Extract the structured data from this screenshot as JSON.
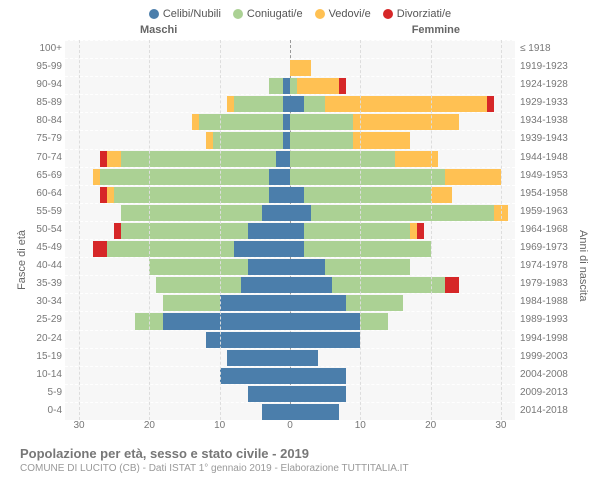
{
  "chart": {
    "type": "population-pyramid",
    "legend": [
      {
        "label": "Celibi/Nubili",
        "color": "#4b7eab"
      },
      {
        "label": "Coniugati/e",
        "color": "#abd194"
      },
      {
        "label": "Vedovi/e",
        "color": "#ffc153"
      },
      {
        "label": "Divorziati/e",
        "color": "#d62728"
      }
    ],
    "male_label": "Maschi",
    "female_label": "Femmine",
    "y_left_title": "Fasce di età",
    "y_right_title": "Anni di nascita",
    "x_max": 32,
    "x_ticks": [
      30,
      20,
      10,
      0,
      10,
      20,
      30
    ],
    "title": "Popolazione per età, sesso e stato civile - 2019",
    "subtitle": "COMUNE DI LUCITO (CB) - Dati ISTAT 1° gennaio 2019 - Elaborazione TUTTITALIA.IT",
    "label_fontsize": 10,
    "background_color": "#f7f7f7",
    "grid_color": "#ffffff",
    "rows": [
      {
        "age": "100+",
        "birth": "≤ 1918",
        "m": [
          0,
          0,
          0,
          0
        ],
        "f": [
          0,
          0,
          0,
          0
        ]
      },
      {
        "age": "95-99",
        "birth": "1919-1923",
        "m": [
          0,
          0,
          0,
          0
        ],
        "f": [
          0,
          0,
          3,
          0
        ]
      },
      {
        "age": "90-94",
        "birth": "1924-1928",
        "m": [
          1,
          2,
          0,
          0
        ],
        "f": [
          0,
          1,
          6,
          1
        ]
      },
      {
        "age": "85-89",
        "birth": "1929-1933",
        "m": [
          1,
          7,
          1,
          0
        ],
        "f": [
          2,
          3,
          23,
          1
        ]
      },
      {
        "age": "80-84",
        "birth": "1934-1938",
        "m": [
          1,
          12,
          1,
          0
        ],
        "f": [
          0,
          9,
          15,
          0
        ]
      },
      {
        "age": "75-79",
        "birth": "1939-1943",
        "m": [
          1,
          10,
          1,
          0
        ],
        "f": [
          0,
          9,
          8,
          0
        ]
      },
      {
        "age": "70-74",
        "birth": "1944-1948",
        "m": [
          2,
          22,
          2,
          1
        ],
        "f": [
          0,
          15,
          6,
          0
        ]
      },
      {
        "age": "65-69",
        "birth": "1949-1953",
        "m": [
          3,
          24,
          1,
          0
        ],
        "f": [
          0,
          22,
          8,
          0
        ]
      },
      {
        "age": "60-64",
        "birth": "1954-1958",
        "m": [
          3,
          22,
          1,
          1
        ],
        "f": [
          2,
          18,
          3,
          0
        ]
      },
      {
        "age": "55-59",
        "birth": "1959-1963",
        "m": [
          4,
          20,
          0,
          0
        ],
        "f": [
          3,
          26,
          2,
          0
        ]
      },
      {
        "age": "50-54",
        "birth": "1964-1968",
        "m": [
          6,
          18,
          0,
          1
        ],
        "f": [
          2,
          15,
          1,
          1
        ]
      },
      {
        "age": "45-49",
        "birth": "1969-1973",
        "m": [
          8,
          18,
          0,
          2
        ],
        "f": [
          2,
          18,
          0,
          0
        ]
      },
      {
        "age": "40-44",
        "birth": "1974-1978",
        "m": [
          6,
          14,
          0,
          0
        ],
        "f": [
          5,
          12,
          0,
          0
        ]
      },
      {
        "age": "35-39",
        "birth": "1979-1983",
        "m": [
          7,
          12,
          0,
          0
        ],
        "f": [
          6,
          16,
          0,
          2
        ]
      },
      {
        "age": "30-34",
        "birth": "1984-1988",
        "m": [
          10,
          8,
          0,
          0
        ],
        "f": [
          8,
          8,
          0,
          0
        ]
      },
      {
        "age": "25-29",
        "birth": "1989-1993",
        "m": [
          18,
          4,
          0,
          0
        ],
        "f": [
          10,
          4,
          0,
          0
        ]
      },
      {
        "age": "20-24",
        "birth": "1994-1998",
        "m": [
          12,
          0,
          0,
          0
        ],
        "f": [
          10,
          0,
          0,
          0
        ]
      },
      {
        "age": "15-19",
        "birth": "1999-2003",
        "m": [
          9,
          0,
          0,
          0
        ],
        "f": [
          4,
          0,
          0,
          0
        ]
      },
      {
        "age": "10-14",
        "birth": "2004-2008",
        "m": [
          10,
          0,
          0,
          0
        ],
        "f": [
          8,
          0,
          0,
          0
        ]
      },
      {
        "age": "5-9",
        "birth": "2009-2013",
        "m": [
          6,
          0,
          0,
          0
        ],
        "f": [
          8,
          0,
          0,
          0
        ]
      },
      {
        "age": "0-4",
        "birth": "2014-2018",
        "m": [
          4,
          0,
          0,
          0
        ],
        "f": [
          7,
          0,
          0,
          0
        ]
      }
    ]
  }
}
